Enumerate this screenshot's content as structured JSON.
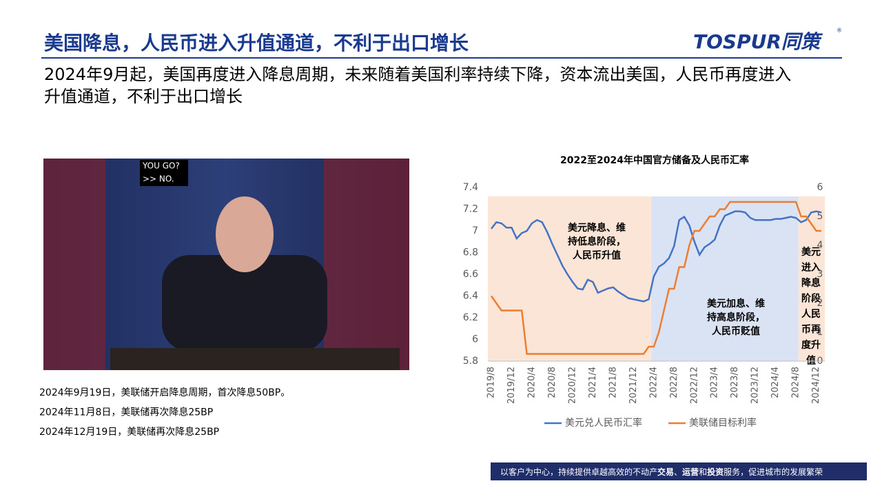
{
  "header": {
    "title": "美国降息，人民币进入升值通道，不利于出口增长",
    "logo": "TOSPUR同策",
    "logo_mark": "®"
  },
  "subtitle": "2024年9月起，美国再度进入降息周期，未来随着美国利率持续下降，资本流出美国，人民币再度进入升值通道，不利于出口增长",
  "photo": {
    "overlay": [
      "YOU GO?",
      ">> NO."
    ]
  },
  "captions": [
    "2024年9月19日，美联储开启降息周期，首次降息50BP。",
    "2024年11月8日，美联储再次降息25BP",
    "2024年12月19日，美联储再次降息25BP"
  ],
  "footer": [
    "以客户为中心，持续提供卓越高效的不动产",
    "交易",
    "、",
    "运营",
    "和",
    "投资",
    "服务，促进城市的发展繁荣"
  ],
  "chart_data": {
    "type": "line",
    "title": "2022至2024年中国官方储备及人民币汇率",
    "categories": [
      "2019/8",
      null,
      null,
      null,
      "2019/12",
      null,
      null,
      null,
      "2020/4",
      null,
      null,
      null,
      "2020/8",
      null,
      null,
      null,
      "2020/12",
      null,
      null,
      null,
      "2021/4",
      null,
      null,
      null,
      "2021/8",
      null,
      null,
      null,
      "2021/12",
      null,
      null,
      null,
      "2022/4",
      null,
      null,
      null,
      "2022/8",
      null,
      null,
      null,
      "2022/12",
      null,
      null,
      null,
      "2023/4",
      null,
      null,
      null,
      "2023/8",
      null,
      null,
      null,
      "2023/12",
      null,
      null,
      null,
      "2024/4",
      null,
      null,
      null,
      "2024/8",
      null,
      null,
      null,
      "2024/12",
      null
    ],
    "series": [
      {
        "name": "美元兑人民币汇率",
        "color": "#4472c4",
        "values": [
          7.02,
          7.08,
          7.07,
          7.03,
          7.03,
          6.93,
          6.98,
          7.0,
          7.07,
          7.1,
          7.08,
          6.99,
          6.88,
          6.78,
          6.68,
          6.6,
          6.53,
          6.47,
          6.46,
          6.55,
          6.53,
          6.43,
          6.45,
          6.47,
          6.48,
          6.44,
          6.41,
          6.38,
          6.37,
          6.36,
          6.35,
          6.37,
          6.58,
          6.67,
          6.7,
          6.75,
          6.86,
          7.1,
          7.13,
          7.05,
          6.9,
          6.78,
          6.85,
          6.88,
          6.92,
          7.05,
          7.14,
          7.16,
          7.18,
          7.18,
          7.17,
          7.12,
          7.1,
          7.1,
          7.1,
          7.1,
          7.11,
          7.11,
          7.12,
          7.13,
          7.12,
          7.08,
          7.1,
          7.17,
          7.18,
          7.17
        ]
      },
      {
        "name": "美联储目标利率",
        "color": "#ed7d31",
        "axis": "y2",
        "values": [
          2.25,
          2.0,
          1.75,
          1.75,
          1.75,
          1.75,
          1.75,
          0.25,
          0.25,
          0.25,
          0.25,
          0.25,
          0.25,
          0.25,
          0.25,
          0.25,
          0.25,
          0.25,
          0.25,
          0.25,
          0.25,
          0.25,
          0.25,
          0.25,
          0.25,
          0.25,
          0.25,
          0.25,
          0.25,
          0.25,
          0.25,
          0.5,
          0.5,
          1.0,
          1.75,
          2.5,
          2.5,
          3.25,
          3.25,
          4.0,
          4.5,
          4.5,
          4.75,
          5.0,
          5.0,
          5.25,
          5.25,
          5.5,
          5.5,
          5.5,
          5.5,
          5.5,
          5.5,
          5.5,
          5.5,
          5.5,
          5.5,
          5.5,
          5.5,
          5.5,
          5.5,
          5.0,
          5.0,
          4.75,
          4.5,
          4.5
        ]
      }
    ],
    "ylim": [
      5.8,
      7.4
    ],
    "yticks": [
      5.8,
      6,
      6.2,
      6.4,
      6.6,
      6.8,
      7,
      7.2,
      7.4
    ],
    "y2lim": [
      0,
      6
    ],
    "y2ticks": [
      0,
      1,
      2,
      3,
      4,
      5,
      6
    ],
    "annotations": [
      {
        "lines": [
          "美元降息、维",
          "持低息阶段，",
          "人民币升值"
        ],
        "color": "#fbe5d6"
      },
      {
        "lines": [
          "美元加息、维",
          "持高息阶段，",
          "人民币贬值"
        ],
        "color": "#dae3f3"
      },
      {
        "lines": [
          "美元",
          "进入",
          "降息",
          "阶段",
          "人民",
          "币再",
          "度升",
          "值"
        ],
        "color": "#fbe5d6"
      }
    ]
  }
}
